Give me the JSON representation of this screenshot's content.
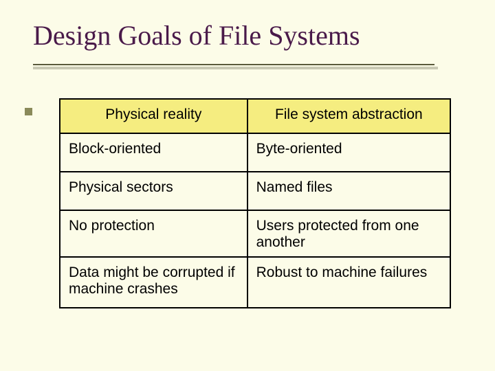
{
  "title": "Design Goals of File Systems",
  "colors": {
    "background": "#fcfce8",
    "title_text": "#4a1a4a",
    "rule_line": "#5a5a3c",
    "rule_shadow": "#c9c9b4",
    "bullet": "#8a8a5a",
    "table_border": "#000000",
    "header_fill": "#f5ed80"
  },
  "fonts": {
    "title_family": "Times New Roman",
    "title_size_pt": 30,
    "body_family": "Arial",
    "body_size_pt": 16
  },
  "table": {
    "type": "table",
    "columns": [
      "Physical reality",
      "File system abstraction"
    ],
    "rows": [
      [
        "Block-oriented",
        "Byte-oriented"
      ],
      [
        "Physical sectors",
        "Named files"
      ],
      [
        "No protection",
        "Users protected from one another"
      ],
      [
        "Data might be corrupted if machine crashes",
        "Robust to machine failures"
      ]
    ],
    "column_align": [
      "left",
      "left"
    ],
    "header_align": "center"
  }
}
